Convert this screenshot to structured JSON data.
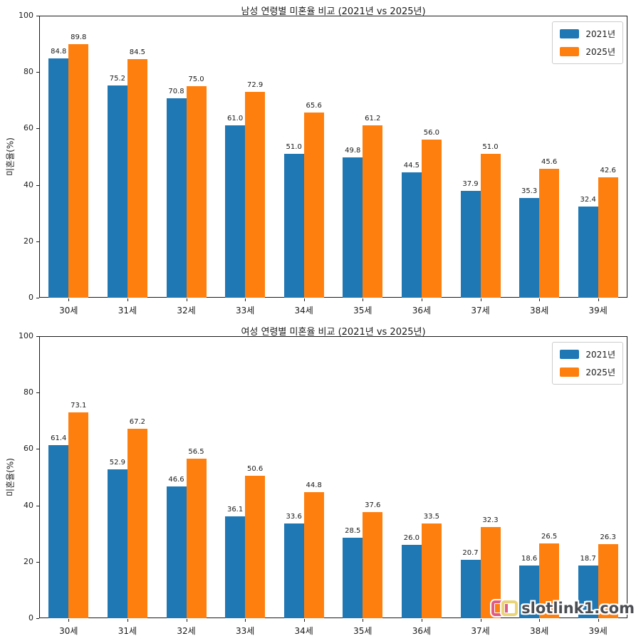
{
  "watermark": {
    "text": "slotlink1.com",
    "logo": "chain-link-icon"
  },
  "chart_data": [
    {
      "type": "bar",
      "title": "남성 연령별 미혼율 비교 (2021년 vs 2025년)",
      "xlabel": "",
      "ylabel": "미혼율(%)",
      "ylim": [
        0,
        100
      ],
      "yticks": [
        0,
        20,
        40,
        60,
        80,
        100
      ],
      "grid": false,
      "bar_value_labels": true,
      "legend_position": "upper right",
      "categories": [
        "30세",
        "31세",
        "32세",
        "33세",
        "34세",
        "35세",
        "36세",
        "37세",
        "38세",
        "39세"
      ],
      "series": [
        {
          "name": "2021년",
          "color": "#1f77b4",
          "values": [
            84.8,
            75.2,
            70.8,
            61.0,
            51.0,
            49.8,
            44.5,
            37.9,
            35.3,
            32.4
          ]
        },
        {
          "name": "2025년",
          "color": "#ff7f0e",
          "values": [
            89.8,
            84.5,
            75.0,
            72.9,
            65.6,
            61.2,
            56.0,
            51.0,
            45.6,
            42.6
          ]
        }
      ]
    },
    {
      "type": "bar",
      "title": "여성 연령별 미혼율 비교 (2021년 vs 2025년)",
      "xlabel": "",
      "ylabel": "미혼율(%)",
      "ylim": [
        0,
        100
      ],
      "yticks": [
        0,
        20,
        40,
        60,
        80,
        100
      ],
      "grid": false,
      "bar_value_labels": true,
      "legend_position": "upper right",
      "categories": [
        "30세",
        "31세",
        "32세",
        "33세",
        "34세",
        "35세",
        "36세",
        "37세",
        "38세",
        "39세"
      ],
      "series": [
        {
          "name": "2021년",
          "color": "#1f77b4",
          "values": [
            61.4,
            52.9,
            46.6,
            36.1,
            33.6,
            28.5,
            26.0,
            20.7,
            18.6,
            18.7
          ]
        },
        {
          "name": "2025년",
          "color": "#ff7f0e",
          "values": [
            73.1,
            67.2,
            56.5,
            50.6,
            44.8,
            37.6,
            33.5,
            32.3,
            26.5,
            26.3
          ]
        }
      ]
    }
  ]
}
